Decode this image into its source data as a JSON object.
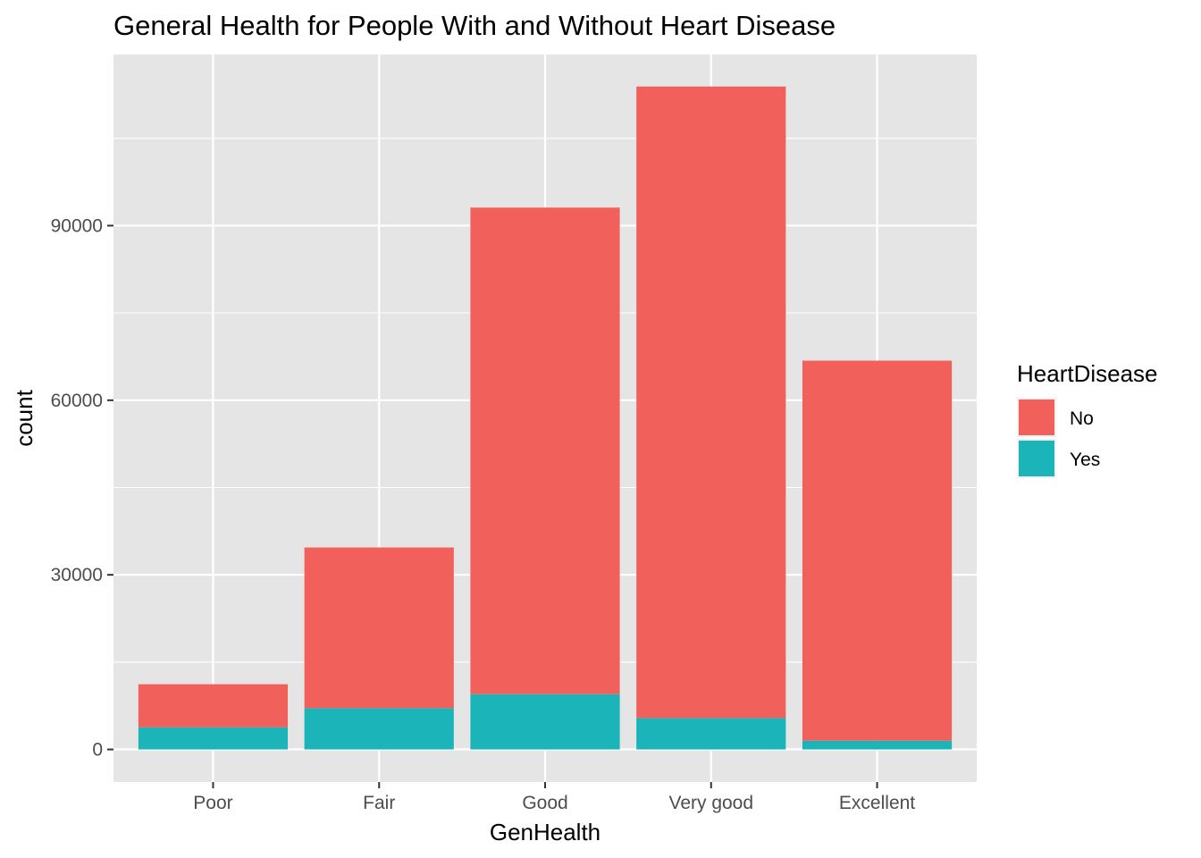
{
  "chart_data": {
    "type": "bar",
    "stacked": true,
    "title": "General Health for People With and Without Heart Disease",
    "xlabel": "GenHealth",
    "ylabel": "count",
    "categories": [
      "Poor",
      "Fair",
      "Good",
      "Very good",
      "Excellent"
    ],
    "series": [
      {
        "name": "No",
        "values": [
          7400,
          27600,
          83600,
          108500,
          65300
        ],
        "color": "#F2605B"
      },
      {
        "name": "Yes",
        "values": [
          3800,
          7100,
          9500,
          5400,
          1500
        ],
        "color": "#1BB5B9"
      }
    ],
    "ylim": [
      -5600,
      119400
    ],
    "yticks": [
      0,
      30000,
      60000,
      90000
    ],
    "ytick_labels": [
      "0",
      "30000",
      "60000",
      "90000"
    ],
    "legend": {
      "title": "HeartDisease",
      "position": "right",
      "items": [
        "No",
        "Yes"
      ]
    },
    "grid": true,
    "panel_background": "#E5E5E5",
    "grid_color": "#FFFFFF"
  }
}
